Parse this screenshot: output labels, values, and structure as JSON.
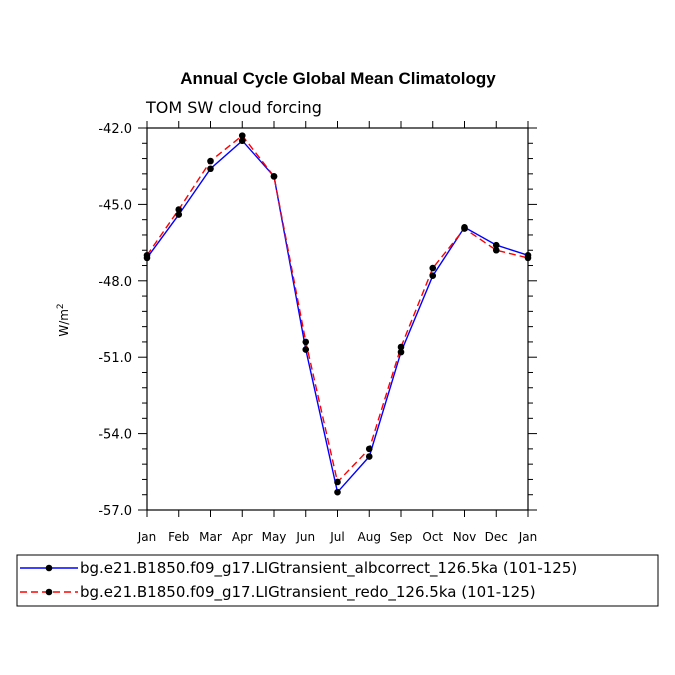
{
  "chart_data": {
    "type": "line",
    "title": "Annual Cycle Global Mean Climatology",
    "subtitle": "TOM SW cloud forcing",
    "ylabel": "W/m",
    "ylabel_superscript": "2",
    "categories": [
      "Jan",
      "Feb",
      "Mar",
      "Apr",
      "May",
      "Jun",
      "Jul",
      "Aug",
      "Sep",
      "Oct",
      "Nov",
      "Dec",
      "Jan"
    ],
    "ylim": [
      -57.0,
      -42.0
    ],
    "yticks": [
      "-42.0",
      "-45.0",
      "-48.0",
      "-51.0",
      "-54.0",
      "-57.0"
    ],
    "ytick_values": [
      -42.0,
      -45.0,
      -48.0,
      -51.0,
      -54.0,
      -57.0
    ],
    "series": [
      {
        "name": "bg.e21.B1850.f09_g17.LIGtransient_albcorrect_126.5ka (101-125)",
        "color": "#0000ff",
        "dash": "solid",
        "values": [
          -47.1,
          -45.4,
          -43.6,
          -42.5,
          -43.9,
          -50.7,
          -56.3,
          -54.9,
          -50.8,
          -47.8,
          -45.9,
          -46.6,
          -47.0
        ]
      },
      {
        "name": "bg.e21.B1850.f09_g17.LIGtransient_redo_126.5ka (101-125)",
        "color": "#ff0000",
        "dash": "dashed",
        "values": [
          -47.0,
          -45.2,
          -43.3,
          -42.3,
          -43.9,
          -50.4,
          -55.9,
          -54.6,
          -50.6,
          -47.5,
          -45.95,
          -46.8,
          -47.1
        ]
      }
    ]
  }
}
